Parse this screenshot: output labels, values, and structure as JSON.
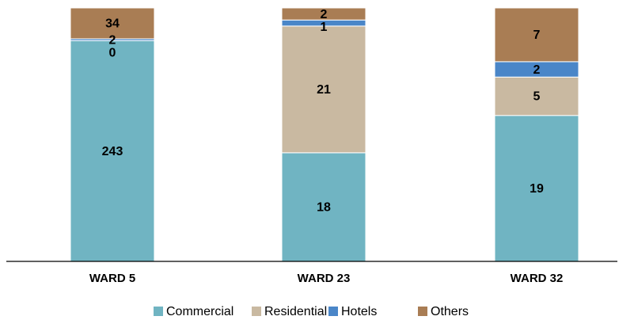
{
  "chart_data": {
    "type": "stacked-bar-100",
    "categories": [
      "WARD 5",
      "WARD 23",
      "WARD 32"
    ],
    "series": [
      {
        "name": "Commercial",
        "color": "#70b4c2",
        "values": [
          243,
          18,
          19
        ]
      },
      {
        "name": "Residential",
        "color": "#c9b9a1",
        "values": [
          0,
          21,
          5
        ]
      },
      {
        "name": "Hotels",
        "color": "#4a86c8",
        "values": [
          2,
          1,
          2
        ]
      },
      {
        "name": "Others",
        "color": "#a97d54",
        "values": [
          34,
          2,
          7
        ]
      }
    ],
    "legend": "bottom"
  }
}
